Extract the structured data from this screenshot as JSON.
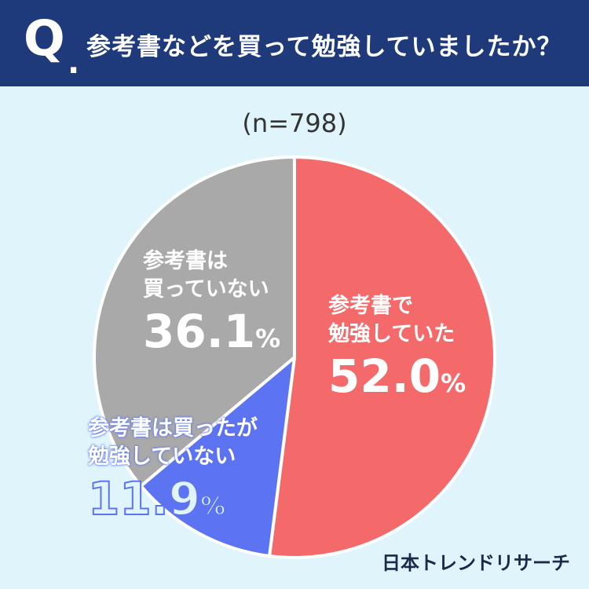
{
  "header": {
    "q_mark": "Q",
    "q_dot": ".",
    "question": "参考書などを買って勉強していましたか？",
    "bg_color": "#1f3a7a"
  },
  "chart_data": {
    "type": "pie",
    "title": "参考書などを買って勉強していましたか？",
    "sample_size": "(n=798)",
    "slices": [
      {
        "label": "参考書で勉強していた",
        "label_lines": [
          "参考書で",
          "勉強していた"
        ],
        "value": 52.0,
        "display": "52.0",
        "color": "#f46a6a"
      },
      {
        "label": "参考書は買ったが勉強していない",
        "label_lines": [
          "参考書は買ったが",
          "勉強していない"
        ],
        "value": 11.9,
        "display": "11.9",
        "color": "#5c74f2"
      },
      {
        "label": "参考書は買っていない",
        "label_lines": [
          "参考書は",
          "買っていない"
        ],
        "value": 36.1,
        "display": "36.1",
        "color": "#a9a9a9"
      }
    ],
    "percent_sign": "%",
    "start_angle": "12 o'clock",
    "direction": "clockwise"
  },
  "brand": "日本トレンドリサーチ"
}
